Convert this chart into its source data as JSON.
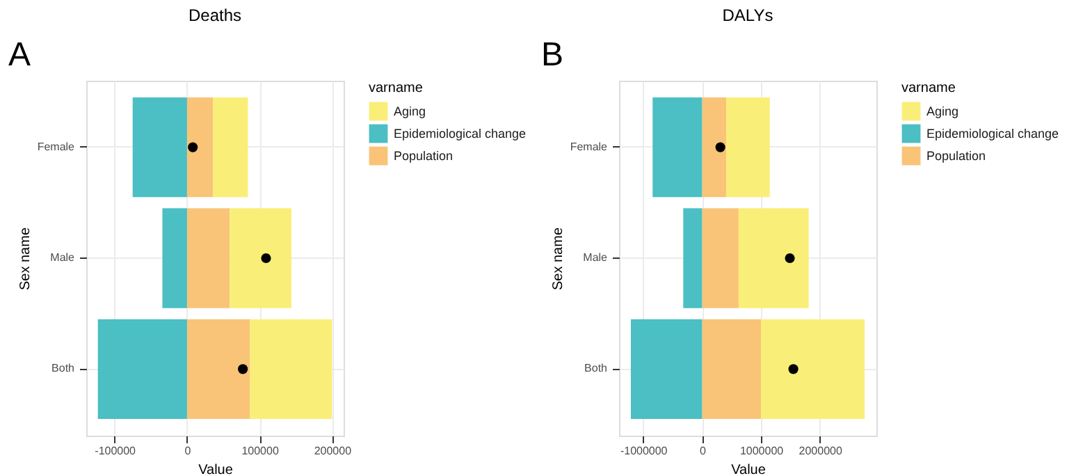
{
  "chart_data": [
    {
      "type": "bar",
      "orientation": "horizontal",
      "stacked": true,
      "title": "Deaths",
      "xlabel": "Value",
      "ylabel": "Sex name",
      "legend_title": "varname",
      "legend": "right",
      "grid": true,
      "annotations": [
        "A"
      ],
      "categories": [
        "Female",
        "Male",
        "Both"
      ],
      "xlim": [
        -139000,
        216000
      ],
      "xticks": [
        -100000,
        0,
        100000,
        200000
      ],
      "series": [
        {
          "name": "Population",
          "color": "#f9c478",
          "values": [
            36000,
            59000,
            87000
          ]
        },
        {
          "name": "Epidemiological change",
          "color": "#4bbfc3",
          "values": [
            -75000,
            -34000,
            -123000
          ]
        },
        {
          "name": "Aging",
          "color": "#f9ef78",
          "values": [
            48000,
            85000,
            113000
          ]
        },
        {
          "type": "scatter",
          "marker": "circle",
          "color": "#000000",
          "values": [
            8000,
            109000,
            77000
          ]
        }
      ]
    },
    {
      "type": "bar",
      "orientation": "horizontal",
      "stacked": true,
      "title": "DALYs",
      "xlabel": "Value",
      "ylabel": "Sex name",
      "legend_title": "varname",
      "legend": "right",
      "grid": true,
      "annotations": [
        "B"
      ],
      "categories": [
        "Female",
        "Male",
        "Both"
      ],
      "xlim": [
        -1410000,
        2960000
      ],
      "xticks": [
        -1000000,
        0,
        1000000,
        2000000
      ],
      "series": [
        {
          "name": "Population",
          "color": "#f9c478",
          "values": [
            410000,
            620000,
            1000000
          ]
        },
        {
          "name": "Epidemiological change",
          "color": "#4bbfc3",
          "values": [
            -840000,
            -320000,
            -1210000
          ]
        },
        {
          "name": "Aging",
          "color": "#f9ef78",
          "values": [
            740000,
            1190000,
            1760000
          ]
        },
        {
          "type": "scatter",
          "marker": "circle",
          "color": "#000000",
          "values": [
            310000,
            1490000,
            1550000
          ]
        }
      ]
    }
  ]
}
